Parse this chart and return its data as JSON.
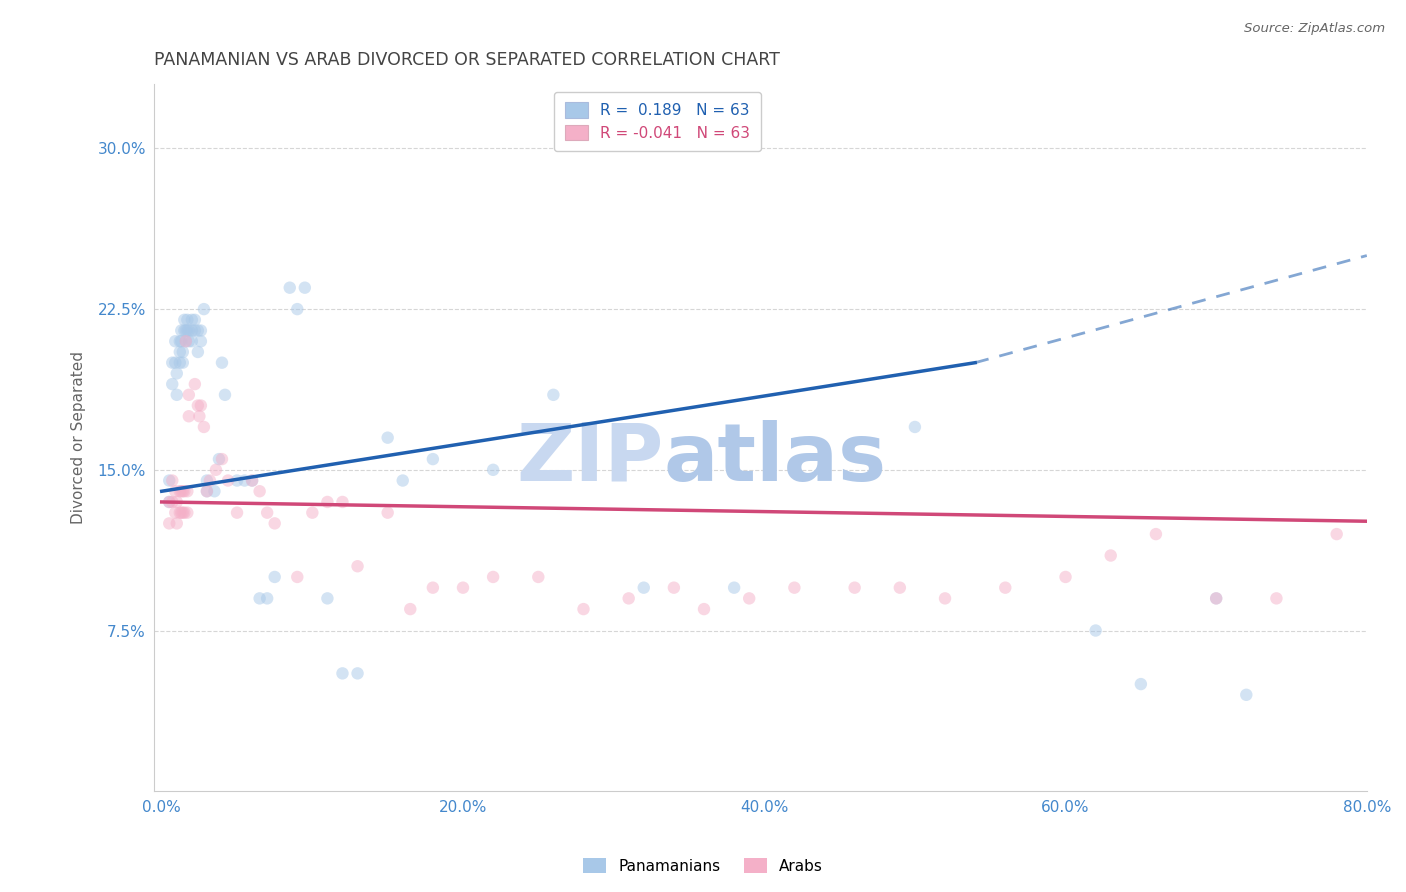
{
  "title": "PANAMANIAN VS ARAB DIVORCED OR SEPARATED CORRELATION CHART",
  "source": "Source: ZipAtlas.com",
  "xlabel_ticks": [
    "0.0%",
    "20.0%",
    "40.0%",
    "60.0%",
    "80.0%"
  ],
  "xlabel_tick_vals": [
    0.0,
    0.2,
    0.4,
    0.6,
    0.8
  ],
  "ylabel_ticks": [
    "7.5%",
    "15.0%",
    "22.5%",
    "30.0%"
  ],
  "ylabel_tick_vals": [
    0.075,
    0.15,
    0.225,
    0.3
  ],
  "xlim": [
    -0.005,
    0.8
  ],
  "ylim": [
    0.0,
    0.33
  ],
  "blue_R": 0.189,
  "blue_N": 63,
  "pink_R": -0.041,
  "pink_N": 63,
  "legend_label_blue": "Panamanians",
  "legend_label_pink": "Arabs",
  "ylabel": "Divorced or Separated",
  "watermark_zip": "ZIP",
  "watermark_atlas": "atlas",
  "blue_scatter_x": [
    0.005,
    0.005,
    0.007,
    0.007,
    0.009,
    0.009,
    0.01,
    0.01,
    0.012,
    0.012,
    0.012,
    0.013,
    0.013,
    0.014,
    0.014,
    0.015,
    0.015,
    0.016,
    0.016,
    0.017,
    0.017,
    0.018,
    0.018,
    0.02,
    0.02,
    0.02,
    0.022,
    0.022,
    0.024,
    0.024,
    0.026,
    0.026,
    0.028,
    0.03,
    0.03,
    0.035,
    0.038,
    0.04,
    0.042,
    0.05,
    0.055,
    0.06,
    0.065,
    0.07,
    0.075,
    0.085,
    0.09,
    0.095,
    0.11,
    0.12,
    0.13,
    0.15,
    0.16,
    0.18,
    0.22,
    0.26,
    0.32,
    0.38,
    0.5,
    0.62,
    0.65,
    0.7,
    0.72
  ],
  "blue_scatter_y": [
    0.145,
    0.135,
    0.2,
    0.19,
    0.21,
    0.2,
    0.195,
    0.185,
    0.21,
    0.205,
    0.2,
    0.215,
    0.21,
    0.205,
    0.2,
    0.22,
    0.215,
    0.215,
    0.21,
    0.22,
    0.215,
    0.215,
    0.21,
    0.22,
    0.215,
    0.21,
    0.22,
    0.215,
    0.215,
    0.205,
    0.215,
    0.21,
    0.225,
    0.145,
    0.14,
    0.14,
    0.155,
    0.2,
    0.185,
    0.145,
    0.145,
    0.145,
    0.09,
    0.09,
    0.1,
    0.235,
    0.225,
    0.235,
    0.09,
    0.055,
    0.055,
    0.165,
    0.145,
    0.155,
    0.15,
    0.185,
    0.095,
    0.095,
    0.17,
    0.075,
    0.05,
    0.09,
    0.045
  ],
  "pink_scatter_x": [
    0.005,
    0.005,
    0.007,
    0.007,
    0.009,
    0.009,
    0.01,
    0.01,
    0.012,
    0.012,
    0.013,
    0.013,
    0.014,
    0.014,
    0.015,
    0.015,
    0.016,
    0.017,
    0.017,
    0.018,
    0.018,
    0.022,
    0.024,
    0.025,
    0.026,
    0.028,
    0.03,
    0.032,
    0.036,
    0.04,
    0.044,
    0.05,
    0.06,
    0.065,
    0.07,
    0.075,
    0.09,
    0.1,
    0.11,
    0.12,
    0.13,
    0.15,
    0.165,
    0.18,
    0.2,
    0.22,
    0.25,
    0.28,
    0.31,
    0.34,
    0.36,
    0.39,
    0.42,
    0.46,
    0.49,
    0.52,
    0.56,
    0.6,
    0.63,
    0.66,
    0.7,
    0.74,
    0.78
  ],
  "pink_scatter_y": [
    0.135,
    0.125,
    0.145,
    0.135,
    0.14,
    0.13,
    0.135,
    0.125,
    0.14,
    0.13,
    0.14,
    0.13,
    0.14,
    0.13,
    0.14,
    0.13,
    0.21,
    0.14,
    0.13,
    0.185,
    0.175,
    0.19,
    0.18,
    0.175,
    0.18,
    0.17,
    0.14,
    0.145,
    0.15,
    0.155,
    0.145,
    0.13,
    0.145,
    0.14,
    0.13,
    0.125,
    0.1,
    0.13,
    0.135,
    0.135,
    0.105,
    0.13,
    0.085,
    0.095,
    0.095,
    0.1,
    0.1,
    0.085,
    0.09,
    0.095,
    0.085,
    0.09,
    0.095,
    0.095,
    0.095,
    0.09,
    0.095,
    0.1,
    0.11,
    0.12,
    0.09,
    0.09,
    0.12
  ],
  "blue_line_x0": 0.0,
  "blue_line_x1": 0.54,
  "blue_line_x2": 0.8,
  "blue_line_y0": 0.14,
  "blue_line_y1": 0.2,
  "blue_line_y2": 0.25,
  "pink_line_x0": 0.0,
  "pink_line_x1": 0.8,
  "pink_line_y0": 0.135,
  "pink_line_y1": 0.126,
  "background_color": "#ffffff",
  "plot_bg_color": "#ffffff",
  "grid_color": "#cccccc",
  "blue_color": "#a8c8e8",
  "pink_color": "#f4b0c8",
  "blue_line_color": "#2060b0",
  "pink_line_color": "#d04878",
  "title_color": "#444444",
  "axis_tick_color": "#4488cc",
  "watermark_color_zip": "#c8d8f0",
  "watermark_color_atlas": "#b0c8e8",
  "title_fontsize": 12.5,
  "tick_fontsize": 11,
  "ylabel_fontsize": 11,
  "scatter_size": 80,
  "scatter_alpha": 0.5,
  "legend_fontsize": 11
}
